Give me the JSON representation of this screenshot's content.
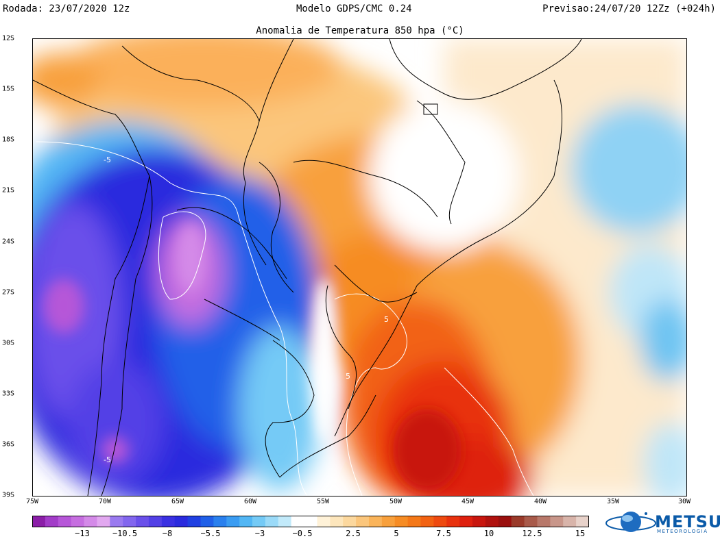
{
  "header": {
    "run": "Rodada: 23/07/2020 12z",
    "model": "Modelo GDPS/CMC 0.24",
    "valid": "Previsao:24/07/20 12Zz (+024h)"
  },
  "map": {
    "title": "Anomalia de Temperatura 850 hpa (°C)",
    "lat_labels": [
      "12S",
      "15S",
      "18S",
      "21S",
      "24S",
      "27S",
      "30S",
      "33S",
      "36S",
      "39S"
    ],
    "lon_labels": [
      "75W",
      "70W",
      "65W",
      "60W",
      "55W",
      "50W",
      "45W",
      "40W",
      "35W",
      "30W"
    ],
    "contour_labels": [
      "-5",
      "5",
      "5",
      "-5"
    ],
    "extent": {
      "lon_min": -75,
      "lon_max": -30,
      "lat_min": -39,
      "lat_max": -12
    },
    "colors": {
      "cold_extreme": "#b040e0",
      "cold": "#1a22e8",
      "neutral": "#ffffff",
      "warm": "#f5a020",
      "hot": "#e51e10"
    }
  },
  "colorbar": {
    "labels": [
      "−13",
      "−10.5",
      "−8",
      "−5.5",
      "−3",
      "−0.5",
      "2.5",
      "5",
      "7.5",
      "10",
      "12.5",
      "15"
    ],
    "colors": [
      "#8b1ea8",
      "#a23cc8",
      "#b656d8",
      "#c66ee0",
      "#d48ae8",
      "#e2a8f0",
      "#9a7af0",
      "#8266ee",
      "#6a50ea",
      "#5240e6",
      "#3a30e2",
      "#2a2ade",
      "#2040e2",
      "#2060e8",
      "#2a80ee",
      "#3a9cf2",
      "#52b6f4",
      "#74caf6",
      "#9adaf8",
      "#c2eafa",
      "#ffffff",
      "#ffffff",
      "#fff2d8",
      "#fde6bc",
      "#fcd89e",
      "#fbc67c",
      "#fab45a",
      "#f8a03c",
      "#f68c24",
      "#f47818",
      "#f26212",
      "#ee4a10",
      "#e8320e",
      "#de200e",
      "#c8160e",
      "#b0120e",
      "#9a100e",
      "#9a3a2a",
      "#a85a4a",
      "#b8786a",
      "#c8968a",
      "#d8b4aa",
      "#e8d2ca"
    ]
  },
  "branding": {
    "name": "METSUL",
    "sub": "METEOROLOGIA"
  }
}
